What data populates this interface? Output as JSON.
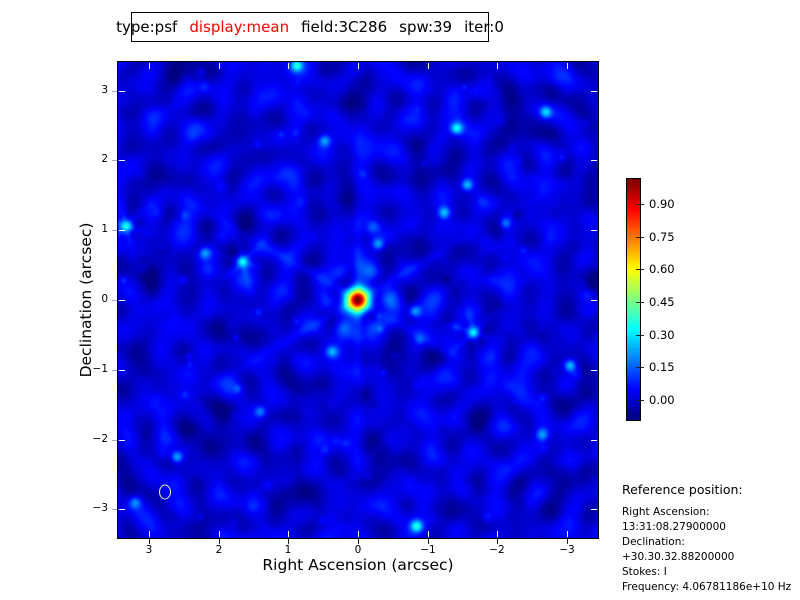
{
  "title_box": {
    "parts": [
      {
        "text": "type:psf",
        "color": "#000000"
      },
      {
        "text": "display:mean",
        "color": "#ff0000"
      },
      {
        "text": "field:3C286",
        "color": "#000000"
      },
      {
        "text": "spw:39",
        "color": "#000000"
      },
      {
        "text": "iter:0",
        "color": "#000000"
      }
    ]
  },
  "chart_data": {
    "type": "heatmap",
    "xlabel": "Right Ascension (arcsec)",
    "ylabel": "Declination (arcsec)",
    "xlim": [
      3.45,
      -3.45
    ],
    "ylim": [
      -3.41,
      3.41
    ],
    "x_ticks": [
      3,
      2,
      1,
      0,
      -1,
      -2,
      -3
    ],
    "x_tick_labels": [
      "3",
      "2",
      "1",
      "0",
      "−1",
      "−2",
      "−3"
    ],
    "y_ticks": [
      3,
      2,
      1,
      0,
      -1,
      -2,
      -3
    ],
    "y_tick_labels": [
      "3",
      "2",
      "1",
      "0",
      "−1",
      "−2",
      "−3"
    ],
    "colormap": "jet",
    "colormap_stops": [
      [
        0.0,
        "#000080"
      ],
      [
        0.125,
        "#0000ff"
      ],
      [
        0.375,
        "#00ffff"
      ],
      [
        0.625,
        "#ffff00"
      ],
      [
        0.875,
        "#ff0000"
      ],
      [
        1.0,
        "#800000"
      ]
    ],
    "colorbar": {
      "vmin": -0.094,
      "vmax": 1.017,
      "ticks": [
        0.9,
        0.75,
        0.6,
        0.45,
        0.3,
        0.15,
        0.0
      ],
      "tick_labels": [
        "0.90",
        "0.75",
        "0.60",
        "0.45",
        "0.30",
        "0.15",
        "0.00"
      ]
    },
    "peak": {
      "x": 0.0,
      "y": 0.0,
      "value": 1.0
    },
    "beam_marker": {
      "x": 2.78,
      "y": -2.75
    },
    "features": [
      {
        "x": 0.88,
        "y": 3.36,
        "value": 0.3,
        "spokes": false
      },
      {
        "x": 0.48,
        "y": 2.28,
        "value": 0.2,
        "spokes": false
      },
      {
        "x": -1.42,
        "y": 2.46,
        "value": 0.3,
        "spokes": false
      },
      {
        "x": -2.7,
        "y": 2.69,
        "value": 0.26,
        "spokes": false
      },
      {
        "x": 3.33,
        "y": 1.06,
        "value": 0.36,
        "spokes": true
      },
      {
        "x": 1.66,
        "y": 0.55,
        "value": 0.36,
        "spokes": true
      },
      {
        "x": 2.2,
        "y": 0.67,
        "value": 0.2,
        "spokes": false
      },
      {
        "x": -1.24,
        "y": 1.25,
        "value": 0.24,
        "spokes": false
      },
      {
        "x": -1.57,
        "y": 1.65,
        "value": 0.26,
        "spokes": false
      },
      {
        "x": -0.29,
        "y": 0.8,
        "value": 0.22,
        "spokes": false
      },
      {
        "x": -1.66,
        "y": -0.47,
        "value": 0.38,
        "spokes": true
      },
      {
        "x": -0.82,
        "y": -0.16,
        "value": 0.22,
        "spokes": false
      },
      {
        "x": -3.05,
        "y": -0.94,
        "value": 0.26,
        "spokes": false
      },
      {
        "x": 0.37,
        "y": -0.74,
        "value": 0.2,
        "spokes": false
      },
      {
        "x": 2.6,
        "y": -2.25,
        "value": 0.24,
        "spokes": false
      },
      {
        "x": -0.84,
        "y": -3.24,
        "value": 0.3,
        "spokes": false
      },
      {
        "x": -2.65,
        "y": -1.93,
        "value": 0.2,
        "spokes": false
      },
      {
        "x": 1.4,
        "y": -1.6,
        "value": 0.18,
        "spokes": false
      },
      {
        "x": -2.12,
        "y": 1.1,
        "value": 0.2,
        "spokes": false
      },
      {
        "x": 3.2,
        "y": -2.9,
        "value": 0.18,
        "spokes": false
      }
    ]
  },
  "reference": {
    "heading": "Reference position:",
    "lines": [
      "Right Ascension: 13:31:08.27900000",
      "Declination: +30.30.32.88200000",
      "Stokes: I",
      "Frequency: 4.06781186e+10 Hz"
    ]
  },
  "colors": {
    "page_bg": "#ffffff",
    "frame": "#000000",
    "title_highlight": "#ff0000",
    "beam_marker": "#eeeeb4"
  }
}
